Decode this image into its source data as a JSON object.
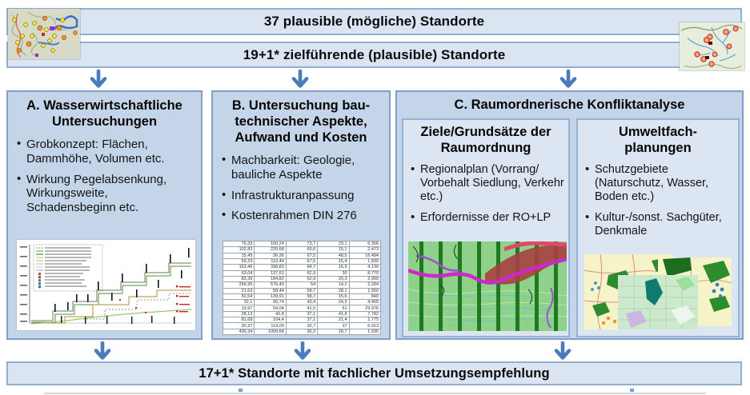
{
  "banners": {
    "top": "37 plausible (mögliche) Standorte",
    "middle": "19+1* zielführende (plausible) Standorte",
    "bottom": "17+1* Standorte mit fachlicher Umsetzungsempfehlung"
  },
  "box_a": {
    "title_lines": [
      "A. Wasserwirtschaftliche",
      "Untersuchungen"
    ],
    "bullets": [
      "Grobkonzept: Flächen, Dammhöhe, Volumen etc.",
      "Wirkung Pegelabsenkung, Wirkungsweite, Schadensbeginn etc."
    ]
  },
  "box_b": {
    "title_lines": [
      "B. Untersuchung bau-",
      "technischer Aspekte,",
      "Aufwand und Kosten"
    ],
    "bullets": [
      "Machbarkeit: Geologie, bauliche Aspekte",
      "Infrastrukturanpassung",
      "Kostenrahmen DIN 276"
    ],
    "table_rows": [
      [
        "76,33",
        "160,24",
        "73,7",
        "23,1",
        "6.306"
      ],
      [
        "102,83",
        "220,68",
        "69,6",
        "15,1",
        "2.473"
      ],
      [
        "15,45",
        "36,36",
        "67,5",
        "48,5",
        "16.494"
      ],
      [
        "59,23",
        "110,44",
        "67,5",
        "15,4",
        "1.839"
      ],
      [
        "153,46",
        "338,83",
        "64,7",
        "16,9",
        "4.130"
      ],
      [
        "63,04",
        "137,61",
        "62,9",
        "30",
        "8.770"
      ],
      [
        "83,39",
        "184,82",
        "62,9",
        "20,3",
        "2.990"
      ],
      [
        "256,95",
        "576,43",
        "54",
        "14,2",
        "2.294"
      ],
      [
        "21,63",
        "58,44",
        "58,7",
        "28,1",
        "1.550"
      ],
      [
        "50,54",
        "139,91",
        "58,7",
        "15,6",
        "849"
      ],
      [
        "32,1",
        "96,74",
        "43,4",
        "24,3",
        "4.455"
      ],
      [
        "19,97",
        "54,04",
        "41,5",
        "61",
        "29.976"
      ],
      [
        "28,13",
        "42,8",
        "37,1",
        "41,8",
        "7.782"
      ],
      [
        "81,68",
        "104,4",
        "37,1",
        "21,4",
        "1.775"
      ],
      [
        "30,37",
        "119,09",
        "32,7",
        "37",
        "6.913"
      ],
      [
        "430,34",
        "1009,68",
        "30,2",
        "18,7",
        "1.935"
      ]
    ]
  },
  "box_c": {
    "title": "C. Raumordnerische Konfliktanalyse",
    "left": {
      "title_lines": [
        "Ziele/Grundsätze der",
        "Raumordnung"
      ],
      "bullets": [
        "Regionalplan (Vorrang/ Vorbehalt Siedlung, Verkehr etc.)",
        "Erfordernisse der RO+LP"
      ]
    },
    "right": {
      "title_lines": [
        "Umweltfach-",
        "planungen"
      ],
      "bullets": [
        "Schutzgebiete (Naturschutz, Wasser, Boden etc.)",
        "Kultur-/sonst. Sachgüter, Denkmale"
      ]
    }
  },
  "colors": {
    "accent_arrow": "#4a7cba",
    "box_fill": "#c5d5e9",
    "subbox_fill": "#dce6f2",
    "banner_fill": "#dbe5f1",
    "border": "#95b3d7"
  }
}
